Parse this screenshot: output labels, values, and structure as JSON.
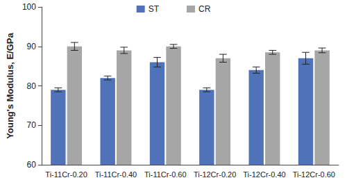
{
  "chart_data": {
    "type": "bar",
    "y_label": "Young's Modulus, E/GPa",
    "categories": [
      "Ti-11Cr-0.20",
      "Ti-11Cr-0.40",
      "Ti-11Cr-0.60",
      "Ti-12Cr-0.20",
      "Ti-12Cr-0.40",
      "Ti-12Cr-0.60"
    ],
    "series": [
      {
        "name": "ST",
        "color": "#4f72b8",
        "values": [
          79,
          82,
          86,
          79,
          84,
          87
        ],
        "errors": [
          0.5,
          0.5,
          1.2,
          0.5,
          0.8,
          1.5
        ]
      },
      {
        "name": "CR",
        "color": "#a6a6a6",
        "values": [
          90,
          89,
          90,
          87,
          88.5,
          89
        ],
        "errors": [
          1.0,
          0.8,
          0.5,
          1.0,
          0.5,
          0.6
        ]
      }
    ],
    "ylim": [
      60,
      100
    ],
    "yticks": [
      60,
      70,
      80,
      90,
      100
    ],
    "grid": false,
    "legend": "top"
  }
}
